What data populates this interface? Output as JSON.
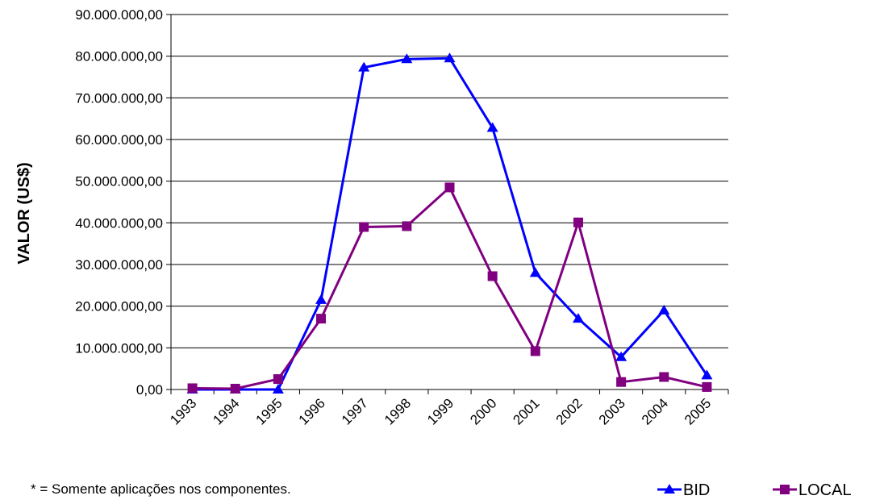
{
  "chart_data": {
    "type": "line",
    "title": "",
    "xlabel": "",
    "ylabel": "VALOR (US$)",
    "categories": [
      "1993",
      "1994",
      "1995",
      "1996",
      "1997",
      "1998",
      "1999",
      "2000",
      "2001",
      "2002",
      "2003",
      "2004",
      "2005"
    ],
    "ylim": [
      0,
      90000000
    ],
    "y_ticks": [
      {
        "value": 0,
        "label": "0,00"
      },
      {
        "value": 10000000,
        "label": "10.000.000,00"
      },
      {
        "value": 20000000,
        "label": "20.000.000,00"
      },
      {
        "value": 30000000,
        "label": "30.000.000,00"
      },
      {
        "value": 40000000,
        "label": "40.000.000,00"
      },
      {
        "value": 50000000,
        "label": "50.000.000,00"
      },
      {
        "value": 60000000,
        "label": "60.000.000,00"
      },
      {
        "value": 70000000,
        "label": "70.000.000,00"
      },
      {
        "value": 80000000,
        "label": "80.000.000,00"
      },
      {
        "value": 90000000,
        "label": "90.000.000,00"
      }
    ],
    "grid": true,
    "legend_position": "bottom-right",
    "series": [
      {
        "name": "BID",
        "color": "#0000ff",
        "marker": "triangle",
        "values": [
          0,
          0,
          0,
          21500000,
          77300000,
          79300000,
          79500000,
          62800000,
          28000000,
          17000000,
          7800000,
          19000000,
          3400000
        ]
      },
      {
        "name": "LOCAL",
        "color": "#800080",
        "marker": "square",
        "values": [
          300000,
          200000,
          2500000,
          17000000,
          39000000,
          39200000,
          48500000,
          27200000,
          9200000,
          40100000,
          1800000,
          3000000,
          600000
        ]
      }
    ]
  },
  "footnote": "* = Somente aplicações nos componentes."
}
